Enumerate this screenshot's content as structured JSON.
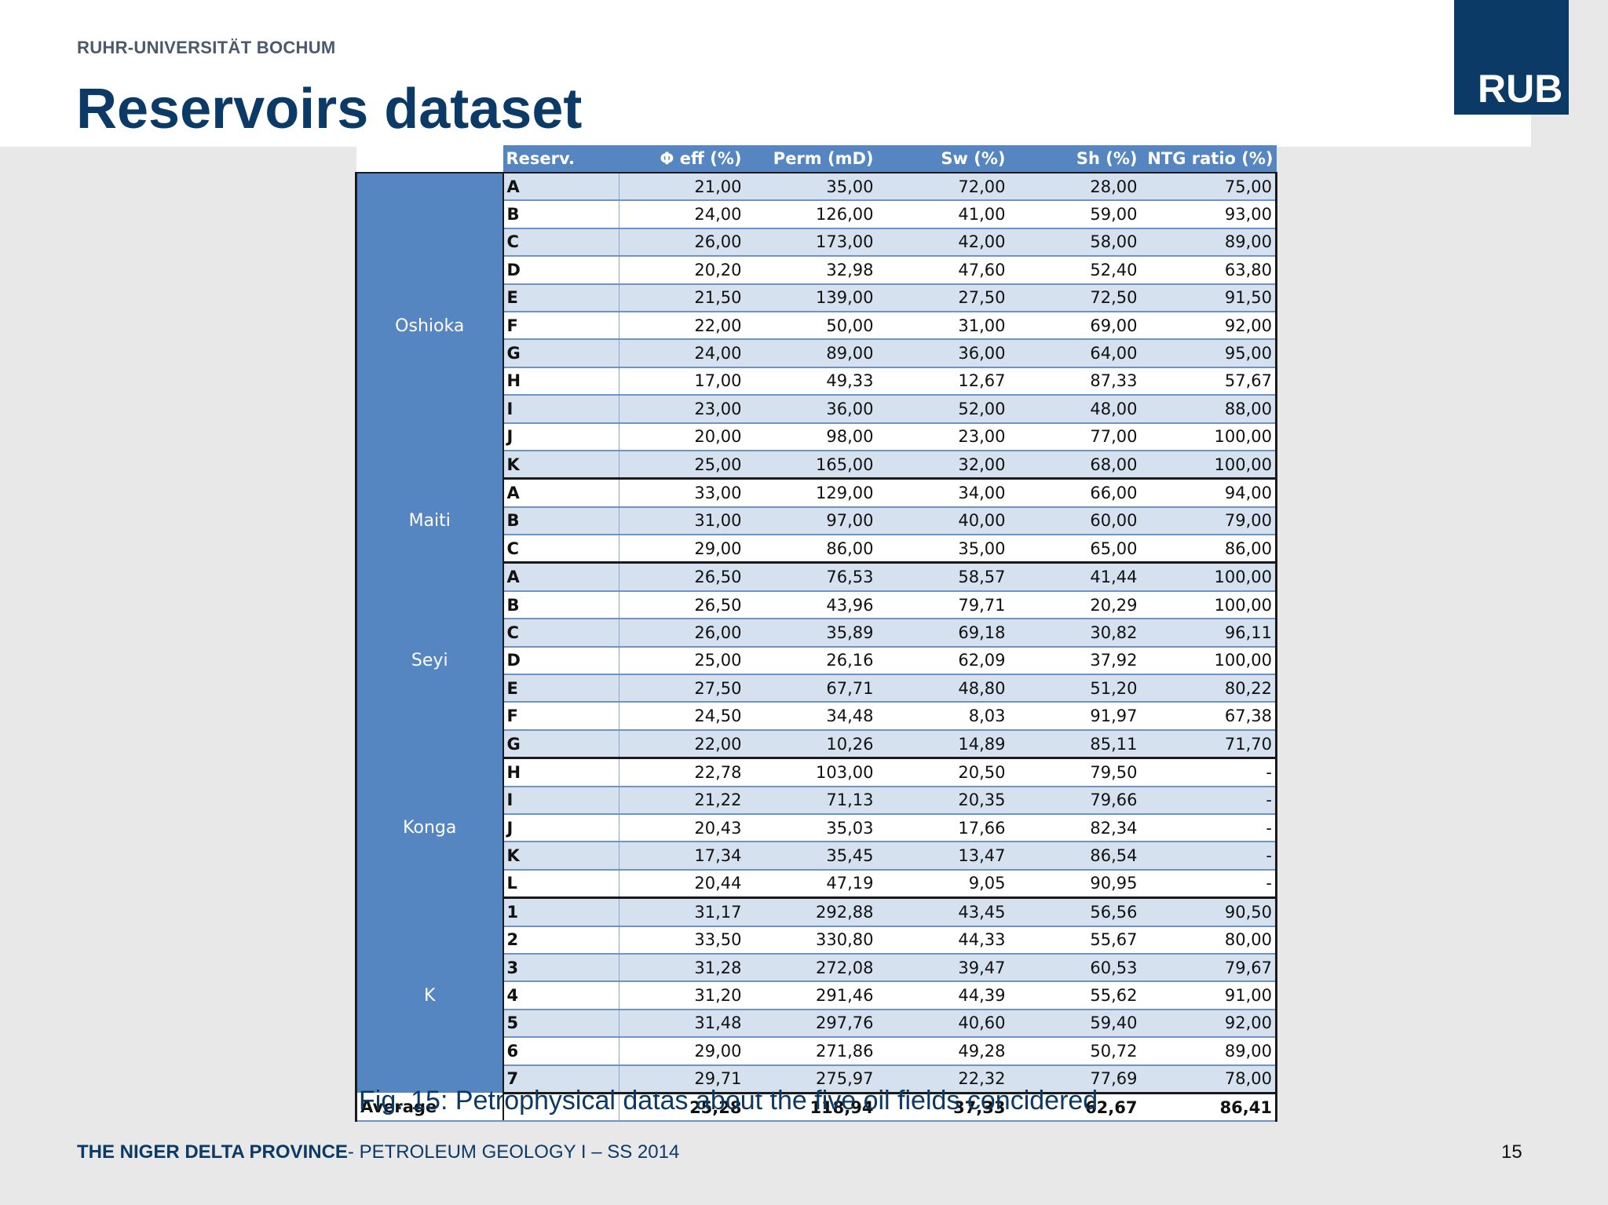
{
  "header": {
    "university": "RUHR-UNIVERSITÄT BOCHUM",
    "title": "Reservoirs dataset",
    "logo_text": "RUB"
  },
  "table": {
    "columns": [
      "Reserv.",
      "Φ eff (%)",
      "Perm (mD)",
      "Sw (%)",
      "Sh (%)",
      "NTG ratio (%)"
    ],
    "groups": [
      {
        "field": "Oshioka",
        "rows": [
          [
            "A",
            "21,00",
            "35,00",
            "72,00",
            "28,00",
            "75,00"
          ],
          [
            "B",
            "24,00",
            "126,00",
            "41,00",
            "59,00",
            "93,00"
          ],
          [
            "C",
            "26,00",
            "173,00",
            "42,00",
            "58,00",
            "89,00"
          ],
          [
            "D",
            "20,20",
            "32,98",
            "47,60",
            "52,40",
            "63,80"
          ],
          [
            "E",
            "21,50",
            "139,00",
            "27,50",
            "72,50",
            "91,50"
          ],
          [
            "F",
            "22,00",
            "50,00",
            "31,00",
            "69,00",
            "92,00"
          ],
          [
            "G",
            "24,00",
            "89,00",
            "36,00",
            "64,00",
            "95,00"
          ],
          [
            "H",
            "17,00",
            "49,33",
            "12,67",
            "87,33",
            "57,67"
          ],
          [
            "I",
            "23,00",
            "36,00",
            "52,00",
            "48,00",
            "88,00"
          ],
          [
            "J",
            "20,00",
            "98,00",
            "23,00",
            "77,00",
            "100,00"
          ],
          [
            "K",
            "25,00",
            "165,00",
            "32,00",
            "68,00",
            "100,00"
          ]
        ]
      },
      {
        "field": "Maiti",
        "rows": [
          [
            "A",
            "33,00",
            "129,00",
            "34,00",
            "66,00",
            "94,00"
          ],
          [
            "B",
            "31,00",
            "97,00",
            "40,00",
            "60,00",
            "79,00"
          ],
          [
            "C",
            "29,00",
            "86,00",
            "35,00",
            "65,00",
            "86,00"
          ]
        ]
      },
      {
        "field": "Seyi",
        "rows": [
          [
            "A",
            "26,50",
            "76,53",
            "58,57",
            "41,44",
            "100,00"
          ],
          [
            "B",
            "26,50",
            "43,96",
            "79,71",
            "20,29",
            "100,00"
          ],
          [
            "C",
            "26,00",
            "35,89",
            "69,18",
            "30,82",
            "96,11"
          ],
          [
            "D",
            "25,00",
            "26,16",
            "62,09",
            "37,92",
            "100,00"
          ],
          [
            "E",
            "27,50",
            "67,71",
            "48,80",
            "51,20",
            "80,22"
          ],
          [
            "F",
            "24,50",
            "34,48",
            "8,03",
            "91,97",
            "67,38"
          ],
          [
            "G",
            "22,00",
            "10,26",
            "14,89",
            "85,11",
            "71,70"
          ]
        ]
      },
      {
        "field": "Konga",
        "rows": [
          [
            "H",
            "22,78",
            "103,00",
            "20,50",
            "79,50",
            "-"
          ],
          [
            "I",
            "21,22",
            "71,13",
            "20,35",
            "79,66",
            "-"
          ],
          [
            "J",
            "20,43",
            "35,03",
            "17,66",
            "82,34",
            "-"
          ],
          [
            "K",
            "17,34",
            "35,45",
            "13,47",
            "86,54",
            "-"
          ],
          [
            "L",
            "20,44",
            "47,19",
            "9,05",
            "90,95",
            "-"
          ]
        ]
      },
      {
        "field": "K",
        "rows": [
          [
            "1",
            "31,17",
            "292,88",
            "43,45",
            "56,56",
            "90,50"
          ],
          [
            "2",
            "33,50",
            "330,80",
            "44,33",
            "55,67",
            "80,00"
          ],
          [
            "3",
            "31,28",
            "272,08",
            "39,47",
            "60,53",
            "79,67"
          ],
          [
            "4",
            "31,20",
            "291,46",
            "44,39",
            "55,62",
            "91,00"
          ],
          [
            "5",
            "31,48",
            "297,76",
            "40,60",
            "59,40",
            "92,00"
          ],
          [
            "6",
            "29,00",
            "271,86",
            "49,28",
            "50,72",
            "89,00"
          ],
          [
            "7",
            "29,71",
            "275,97",
            "22,32",
            "77,69",
            "78,00"
          ]
        ]
      }
    ],
    "average": {
      "label": "Average",
      "values": [
        "",
        "25,28",
        "118,94",
        "37,33",
        "62,67",
        "86,41"
      ]
    }
  },
  "caption": "Fig. 15: Petrophysical datas about the five oil fields concidered",
  "footer": {
    "bold": "THE NIGER DELTA PROVINCE",
    "rest": "- PETROLEUM GEOLOGY I – SS 2014",
    "page": "15"
  },
  "colors": {
    "brand_blue": "#0b3a66",
    "table_blue": "#5686c2",
    "row_light": "#d6e1f0"
  }
}
